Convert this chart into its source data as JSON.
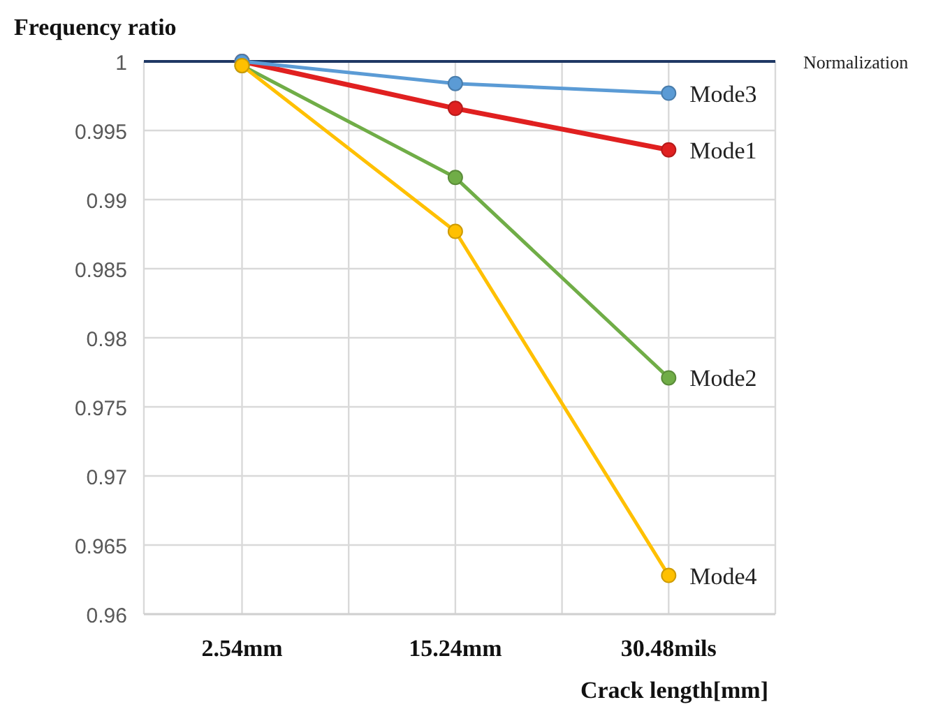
{
  "chart_data": {
    "type": "line",
    "ylabel": "Frequency ratio",
    "xlabel": "Crack length[mm]",
    "categories": [
      "2.54mm",
      "15.24mm",
      "30.48mils"
    ],
    "series": [
      {
        "name": "Mode1",
        "color": "#e02020",
        "values": [
          1,
          0.9966,
          0.9936
        ]
      },
      {
        "name": "Mode2",
        "color": "#70ad47",
        "values": [
          0.9997,
          0.9916,
          0.9771
        ]
      },
      {
        "name": "Mode3",
        "color": "#5b9bd5",
        "values": [
          1,
          0.9984,
          0.9977
        ]
      },
      {
        "name": "Mode4",
        "color": "#ffc000",
        "values": [
          0.9997,
          0.9877,
          0.9628
        ]
      }
    ],
    "ylim": [
      0.96,
      1
    ],
    "yticks": [
      0.96,
      0.965,
      0.97,
      0.975,
      0.98,
      0.985,
      0.99,
      0.995,
      1
    ],
    "ref_lines": [
      {
        "axis": "y",
        "value": 1,
        "label": "Normalization",
        "color": "#1f3864"
      }
    ],
    "grid": true,
    "marker": "circle",
    "line_style": "solid",
    "legend": "right"
  }
}
